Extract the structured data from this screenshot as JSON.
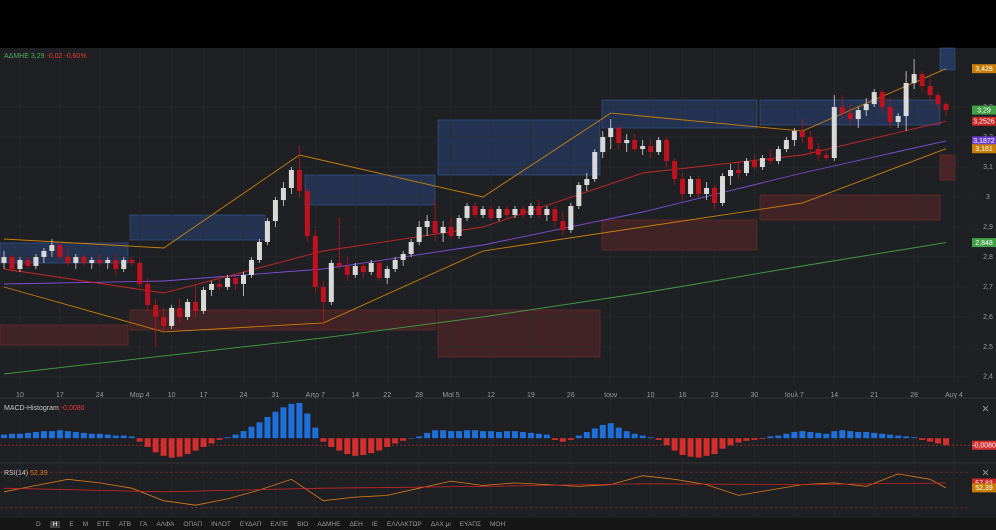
{
  "chart_data": [
    {
      "type": "candlestick",
      "legend": {
        "symbol": "ΑΔΜΗΕ",
        "price": "3,29",
        "change": "-0,02",
        "change_pct": "-0,60%"
      },
      "up_color": "#d9d9d9",
      "down_color": "#c0111f",
      "grid": true,
      "xlim": [
        -0.5,
        121
      ],
      "xticks": [
        {
          "value": 2,
          "label": "10"
        },
        {
          "value": 7,
          "label": "17"
        },
        {
          "value": 12,
          "label": "24"
        },
        {
          "value": 17,
          "label": "Μαρ 4"
        },
        {
          "value": 21,
          "label": "10"
        },
        {
          "value": 25,
          "label": "17"
        },
        {
          "value": 30,
          "label": "24"
        },
        {
          "value": 34,
          "label": "31"
        },
        {
          "value": 39,
          "label": "Απρ 7"
        },
        {
          "value": 44,
          "label": "14"
        },
        {
          "value": 48,
          "label": "22"
        },
        {
          "value": 52,
          "label": "28"
        },
        {
          "value": 56,
          "label": "Μαϊ 5"
        },
        {
          "value": 61,
          "label": "12"
        },
        {
          "value": 66,
          "label": "19"
        },
        {
          "value": 71,
          "label": "26"
        },
        {
          "value": 76,
          "label": "Ιουν"
        },
        {
          "value": 81,
          "label": "10"
        },
        {
          "value": 85,
          "label": "16"
        },
        {
          "value": 89,
          "label": "23"
        },
        {
          "value": 94,
          "label": "30"
        },
        {
          "value": 99,
          "label": "Ιουλ 7"
        },
        {
          "value": 104,
          "label": "14"
        },
        {
          "value": 109,
          "label": "21"
        },
        {
          "value": 114,
          "label": "28"
        },
        {
          "value": 119,
          "label": "Αυγ 4"
        }
      ],
      "ylim": [
        2.373,
        3.497
      ],
      "yticks": [
        {
          "value": 2.4,
          "label": "2,4"
        },
        {
          "value": 2.5,
          "label": "2,5"
        },
        {
          "value": 2.6,
          "label": "2,6"
        },
        {
          "value": 2.7,
          "label": "2,7"
        },
        {
          "value": 2.8,
          "label": "2,8"
        },
        {
          "value": 2.9,
          "label": "2,9"
        },
        3,
        {
          "value": 3.1,
          "label": "3,1"
        },
        {
          "value": 3.2,
          "label": "3,2"
        },
        {
          "value": 3.3,
          "label": "3,3"
        }
      ],
      "ohlc": [
        [
          2.78,
          2.82,
          2.76,
          2.8
        ],
        [
          2.8,
          2.81,
          2.75,
          2.76
        ],
        [
          2.76,
          2.8,
          2.75,
          2.79
        ],
        [
          2.79,
          2.8,
          2.76,
          2.77
        ],
        [
          2.77,
          2.81,
          2.76,
          2.8
        ],
        [
          2.8,
          2.83,
          2.78,
          2.82
        ],
        [
          2.82,
          2.86,
          2.8,
          2.84
        ],
        [
          2.84,
          2.85,
          2.79,
          2.8
        ],
        [
          2.8,
          2.83,
          2.77,
          2.78
        ],
        [
          2.78,
          2.81,
          2.76,
          2.8
        ],
        [
          2.8,
          2.81,
          2.77,
          2.78
        ],
        [
          2.78,
          2.8,
          2.76,
          2.79
        ],
        [
          2.79,
          2.81,
          2.77,
          2.78
        ],
        [
          2.78,
          2.8,
          2.76,
          2.79
        ],
        [
          2.79,
          2.81,
          2.74,
          2.76
        ],
        [
          2.76,
          2.8,
          2.75,
          2.79
        ],
        [
          2.79,
          2.8,
          2.77,
          2.78
        ],
        [
          2.78,
          2.79,
          2.7,
          2.71
        ],
        [
          2.71,
          2.73,
          2.62,
          2.64
        ],
        [
          2.64,
          2.66,
          2.5,
          2.6
        ],
        [
          2.6,
          2.63,
          2.55,
          2.57
        ],
        [
          2.57,
          2.64,
          2.56,
          2.63
        ],
        [
          2.63,
          2.66,
          2.58,
          2.6
        ],
        [
          2.6,
          2.66,
          2.59,
          2.65
        ],
        [
          2.65,
          2.71,
          2.6,
          2.62
        ],
        [
          2.62,
          2.7,
          2.61,
          2.69
        ],
        [
          2.69,
          2.72,
          2.67,
          2.71
        ],
        [
          2.71,
          2.73,
          2.69,
          2.7
        ],
        [
          2.7,
          2.74,
          2.69,
          2.73
        ],
        [
          2.73,
          2.74,
          2.69,
          2.71
        ],
        [
          2.71,
          2.75,
          2.67,
          2.74
        ],
        [
          2.74,
          2.8,
          2.73,
          2.79
        ],
        [
          2.79,
          2.86,
          2.78,
          2.85
        ],
        [
          2.85,
          2.93,
          2.84,
          2.92
        ],
        [
          2.92,
          3.0,
          2.9,
          2.99
        ],
        [
          2.99,
          3.05,
          2.97,
          3.03
        ],
        [
          3.03,
          3.1,
          3.01,
          3.09
        ],
        [
          3.09,
          3.17,
          3.0,
          3.02
        ],
        [
          3.02,
          3.03,
          2.85,
          2.87
        ],
        [
          2.87,
          2.89,
          2.68,
          2.7
        ],
        [
          2.7,
          2.72,
          2.57,
          2.65
        ],
        [
          2.65,
          2.79,
          2.64,
          2.78
        ],
        [
          2.78,
          2.93,
          2.76,
          2.77
        ],
        [
          2.77,
          2.8,
          2.72,
          2.74
        ],
        [
          2.74,
          2.78,
          2.73,
          2.77
        ],
        [
          2.77,
          2.78,
          2.73,
          2.75
        ],
        [
          2.75,
          2.79,
          2.74,
          2.78
        ],
        [
          2.78,
          2.79,
          2.72,
          2.73
        ],
        [
          2.73,
          2.77,
          2.71,
          2.76
        ],
        [
          2.76,
          2.8,
          2.75,
          2.79
        ],
        [
          2.79,
          2.82,
          2.77,
          2.81
        ],
        [
          2.81,
          2.86,
          2.8,
          2.85
        ],
        [
          2.85,
          2.92,
          2.84,
          2.9
        ],
        [
          2.9,
          2.94,
          2.87,
          2.92
        ],
        [
          2.92,
          2.99,
          2.85,
          2.88
        ],
        [
          2.88,
          2.92,
          2.85,
          2.9
        ],
        [
          2.9,
          2.93,
          2.86,
          2.87
        ],
        [
          2.87,
          2.94,
          2.86,
          2.93
        ],
        [
          2.93,
          2.98,
          2.92,
          2.97
        ],
        [
          2.97,
          2.98,
          2.93,
          2.94
        ],
        [
          2.94,
          2.97,
          2.93,
          2.96
        ],
        [
          2.96,
          2.97,
          2.92,
          2.93
        ],
        [
          2.93,
          2.97,
          2.92,
          2.96
        ],
        [
          2.96,
          2.97,
          2.93,
          2.94
        ],
        [
          2.94,
          2.97,
          2.93,
          2.96
        ],
        [
          2.96,
          2.97,
          2.93,
          2.94
        ],
        [
          2.94,
          2.98,
          2.93,
          2.97
        ],
        [
          2.97,
          2.99,
          2.93,
          2.94
        ],
        [
          2.94,
          2.97,
          2.92,
          2.96
        ],
        [
          2.96,
          2.97,
          2.9,
          2.92
        ],
        [
          2.92,
          2.95,
          2.87,
          2.89
        ],
        [
          2.89,
          2.98,
          2.88,
          2.97
        ],
        [
          2.97,
          3.05,
          2.96,
          3.04
        ],
        [
          3.04,
          3.08,
          3.02,
          3.06
        ],
        [
          3.06,
          3.16,
          3.05,
          3.15
        ],
        [
          3.15,
          3.22,
          3.13,
          3.2
        ],
        [
          3.2,
          3.26,
          3.16,
          3.23
        ],
        [
          3.23,
          3.24,
          3.16,
          3.18
        ],
        [
          3.18,
          3.21,
          3.15,
          3.19
        ],
        [
          3.19,
          3.21,
          3.15,
          3.16
        ],
        [
          3.16,
          3.19,
          3.14,
          3.17
        ],
        [
          3.17,
          3.19,
          3.13,
          3.15
        ],
        [
          3.15,
          3.2,
          3.14,
          3.19
        ],
        [
          3.19,
          3.2,
          3.1,
          3.12
        ],
        [
          3.12,
          3.13,
          3.04,
          3.06
        ],
        [
          3.06,
          3.08,
          2.99,
          3.01
        ],
        [
          3.01,
          3.07,
          3.0,
          3.06
        ],
        [
          3.06,
          3.07,
          3.0,
          3.01
        ],
        [
          3.01,
          3.05,
          2.99,
          3.03
        ],
        [
          3.03,
          3.04,
          2.96,
          2.98
        ],
        [
          2.98,
          3.08,
          2.97,
          3.07
        ],
        [
          3.07,
          3.11,
          3.04,
          3.09
        ],
        [
          3.09,
          3.12,
          3.06,
          3.08
        ],
        [
          3.08,
          3.13,
          3.07,
          3.12
        ],
        [
          3.12,
          3.14,
          3.09,
          3.1
        ],
        [
          3.1,
          3.14,
          3.09,
          3.13
        ],
        [
          3.13,
          3.16,
          3.11,
          3.12
        ],
        [
          3.12,
          3.17,
          3.11,
          3.16
        ],
        [
          3.16,
          3.2,
          3.15,
          3.19
        ],
        [
          3.19,
          3.23,
          3.17,
          3.22
        ],
        [
          3.22,
          3.26,
          3.18,
          3.2
        ],
        [
          3.2,
          3.22,
          3.14,
          3.16
        ],
        [
          3.16,
          3.18,
          3.12,
          3.14
        ],
        [
          3.14,
          3.16,
          3.12,
          3.13
        ],
        [
          3.13,
          3.34,
          3.12,
          3.3
        ],
        [
          3.3,
          3.34,
          3.26,
          3.28
        ],
        [
          3.28,
          3.31,
          3.24,
          3.26
        ],
        [
          3.26,
          3.3,
          3.23,
          3.29
        ],
        [
          3.29,
          3.33,
          3.27,
          3.31
        ],
        [
          3.31,
          3.36,
          3.3,
          3.35
        ],
        [
          3.35,
          3.36,
          3.28,
          3.3
        ],
        [
          3.3,
          3.33,
          3.23,
          3.25
        ],
        [
          3.25,
          3.28,
          3.23,
          3.27
        ],
        [
          3.27,
          3.42,
          3.22,
          3.38
        ],
        [
          3.38,
          3.46,
          3.36,
          3.41
        ],
        [
          3.41,
          3.42,
          3.35,
          3.37
        ],
        [
          3.37,
          3.4,
          3.32,
          3.34
        ],
        [
          3.34,
          3.35,
          3.29,
          3.31
        ],
        [
          3.31,
          3.32,
          3.27,
          3.29
        ]
      ],
      "lines": [
        {
          "color": "#43a047",
          "x": [
            0,
            20,
            40,
            60,
            80,
            100,
            118
          ],
          "values": [
            2.41,
            2.47,
            2.53,
            2.6,
            2.68,
            2.77,
            2.848
          ]
        },
        {
          "color": "#7b4fd6",
          "x": [
            0,
            20,
            40,
            60,
            80,
            100,
            118
          ],
          "values": [
            2.71,
            2.72,
            2.76,
            2.84,
            2.95,
            3.08,
            3.1872
          ]
        },
        {
          "color": "#c62828",
          "x": [
            0,
            20,
            40,
            60,
            80,
            100,
            118
          ],
          "values": [
            2.76,
            2.68,
            2.82,
            2.9,
            3.08,
            3.14,
            3.2526
          ]
        },
        {
          "color": "#c87f0a",
          "x": [
            0,
            20,
            37,
            60,
            76,
            100,
            118
          ],
          "values": [
            2.86,
            2.83,
            3.14,
            3.0,
            3.28,
            3.22,
            3.428
          ]
        },
        {
          "color": "#c87f0a",
          "x": [
            0,
            20,
            40,
            60,
            80,
            100,
            118
          ],
          "values": [
            2.7,
            2.55,
            2.58,
            2.82,
            2.9,
            2.98,
            3.161
          ]
        }
      ],
      "price_badges": [
        {
          "value": 3.428,
          "label": "3,428",
          "color": "#c87f0a"
        },
        {
          "value": 3.29,
          "label": "3,29",
          "color": "#43a047"
        },
        {
          "value": 3.2526,
          "label": "3,2526",
          "color": "#c62828"
        },
        {
          "value": 3.1872,
          "label": "3,1872",
          "color": "#6a3fd0"
        },
        {
          "value": 3.161,
          "label": "3,161",
          "color": "#c87f0a"
        },
        {
          "value": 2.848,
          "label": "2,848",
          "color": "#43a047"
        }
      ]
    },
    {
      "type": "histogram",
      "title": "MACD-Histogram",
      "title_value": "-0,0080",
      "pos_color": "#1e6fd9",
      "neg_color": "#d32f2f",
      "ylim": [
        -0.027,
        0.041
      ],
      "values": [
        0.004,
        0.005,
        0.005,
        0.006,
        0.007,
        0.008,
        0.008,
        0.009,
        0.008,
        0.007,
        0.006,
        0.005,
        0.005,
        0.004,
        0.003,
        0.003,
        0.002,
        -0.004,
        -0.01,
        -0.016,
        -0.02,
        -0.022,
        -0.021,
        -0.018,
        -0.014,
        -0.01,
        -0.006,
        -0.002,
        0.001,
        0.004,
        0.008,
        0.013,
        0.018,
        0.024,
        0.03,
        0.035,
        0.039,
        0.04,
        0.028,
        0.012,
        -0.004,
        -0.01,
        -0.014,
        -0.018,
        -0.02,
        -0.019,
        -0.017,
        -0.014,
        -0.01,
        -0.006,
        -0.003,
        0.0,
        0.002,
        0.006,
        0.009,
        0.009,
        0.008,
        0.008,
        0.009,
        0.009,
        0.008,
        0.008,
        0.007,
        0.008,
        0.008,
        0.007,
        0.006,
        0.005,
        0.004,
        -0.002,
        -0.004,
        -0.002,
        0.003,
        0.007,
        0.011,
        0.015,
        0.017,
        0.012,
        0.008,
        0.005,
        0.003,
        0.001,
        -0.002,
        -0.008,
        -0.014,
        -0.019,
        -0.021,
        -0.022,
        -0.02,
        -0.018,
        -0.012,
        -0.008,
        -0.005,
        -0.003,
        -0.002,
        -0.001,
        0.002,
        0.003,
        0.005,
        0.007,
        0.008,
        0.007,
        0.006,
        0.005,
        0.008,
        0.009,
        0.008,
        0.007,
        0.007,
        0.006,
        0.005,
        0.004,
        0.003,
        0.002,
        0.001,
        -0.002,
        -0.004,
        -0.006,
        -0.008
      ],
      "badge": {
        "value": -0.008,
        "label": "-0,0080",
        "color": "#d32f2f"
      }
    },
    {
      "type": "line",
      "title": "RSI(14)",
      "title_value": "52,39",
      "ylim": [
        22,
        78
      ],
      "levels": [
        70,
        30
      ],
      "series": [
        {
          "color": "#e07b1a",
          "x": [
            0,
            4,
            8,
            12,
            16,
            20,
            24,
            28,
            32,
            36,
            40,
            44,
            48,
            52,
            56,
            60,
            64,
            68,
            72,
            76,
            80,
            84,
            88,
            92,
            96,
            100,
            104,
            108,
            112,
            116,
            118
          ],
          "values": [
            48,
            55,
            62,
            58,
            52,
            38,
            33,
            40,
            50,
            62,
            38,
            42,
            44,
            52,
            60,
            55,
            58,
            56,
            54,
            56,
            66,
            62,
            56,
            44,
            50,
            56,
            58,
            54,
            68,
            62,
            52.39
          ]
        },
        {
          "color": "#c62828",
          "x": [
            0,
            20,
            40,
            60,
            80,
            100,
            118
          ],
          "values": [
            52,
            48,
            52,
            54,
            57,
            56,
            57.83
          ]
        }
      ],
      "badges": [
        {
          "value": 57.83,
          "label": "57,83",
          "color": "#c62828"
        },
        {
          "value": 52.39,
          "label": "52,39",
          "color": "#c87f0a"
        }
      ]
    }
  ],
  "toolbar": [
    "D",
    "Η",
    "Ε",
    "Μ",
    "ΕΤΕ",
    "ΑΤΒ",
    "ΓΑ",
    "ΑΛΦΑ",
    "ΟΠΑΠ",
    "ΙΝΛΟΤ",
    "ΕΥΔΑΠ",
    "ΕΛΠΕ",
    "ΒΙΟ",
    "ΑΔΜΗΕ",
    "ΔΕΗ",
    "ΙΕ",
    "ΕΛΛΑΚΤΩΡ",
    "ΔΑΧ μι",
    "ΕΥΑΠΣ",
    "ΜΟΗ"
  ]
}
